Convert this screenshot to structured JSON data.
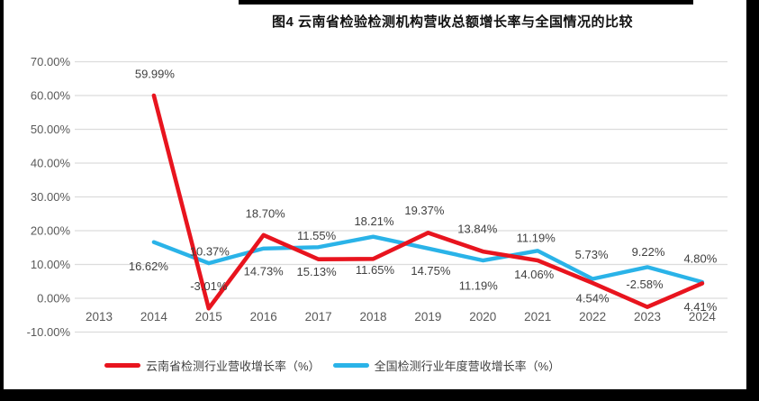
{
  "title": "图4 云南省检验检测机构营收总额增长率与全国情况的比较",
  "chart_data": {
    "type": "line",
    "title": "图4 云南省检验检测机构营收总额增长率与全国情况的比较",
    "categories": [
      "2013",
      "2014",
      "2015",
      "2016",
      "2017",
      "2018",
      "2019",
      "2020",
      "2021",
      "2022",
      "2023",
      "2024"
    ],
    "series": [
      {
        "name": "云南省检测行业营收增长率（%）",
        "color": "#e8141e",
        "values": [
          null,
          59.99,
          -3.01,
          18.7,
          11.55,
          11.65,
          19.37,
          13.84,
          11.19,
          4.54,
          -2.58,
          4.41
        ],
        "labels": [
          null,
          "59.99%",
          "-3.01%",
          "18.70%",
          "11.55%",
          "11.65%",
          "19.37%",
          "13.84%",
          "11.19%",
          "4.54%",
          "-2.58%",
          "4.41%"
        ],
        "label_offsets": [
          null,
          [
            1,
            -24
          ],
          [
            0,
            -25
          ],
          [
            2,
            -24
          ],
          [
            -2,
            -26
          ],
          [
            2,
            12
          ],
          [
            -4,
            -25
          ],
          [
            -6,
            -25
          ],
          [
            -2,
            -25
          ],
          [
            0,
            17
          ],
          [
            -3,
            -25
          ],
          [
            -2,
            26
          ]
        ]
      },
      {
        "name": "全国检测行业年度营收增长率（%）",
        "color": "#2ab3e8",
        "values": [
          null,
          16.62,
          10.37,
          14.73,
          15.13,
          18.21,
          14.75,
          11.19,
          14.06,
          5.73,
          9.22,
          4.8
        ],
        "labels": [
          null,
          "16.62%",
          "10.37%",
          "14.73%",
          "15.13%",
          "18.21%",
          "14.75%",
          "11.19%",
          "14.06%",
          "5.73%",
          "9.22%",
          "4.80%"
        ],
        "label_offsets": [
          null,
          [
            -6,
            27
          ],
          [
            1,
            -13
          ],
          [
            0,
            25
          ],
          [
            -2,
            27
          ],
          [
            1,
            -17
          ],
          [
            3,
            25
          ],
          [
            -5,
            28
          ],
          [
            -4,
            26
          ],
          [
            -1,
            -27
          ],
          [
            1,
            -17
          ],
          [
            -2,
            -26
          ]
        ]
      }
    ],
    "xlabel": "",
    "ylabel": "",
    "ylim": [
      -10,
      70
    ],
    "ytick_step": 10,
    "ytick_labels": [
      "70.00%",
      "60.00%",
      "50.00%",
      "40.00%",
      "30.00%",
      "20.00%",
      "10.00%",
      "0.00%",
      "-10.00%"
    ],
    "grid": true,
    "legend_position": "bottom"
  },
  "style": {
    "grid_color": "#dcdcdc",
    "tick_text_color": "#595959",
    "data_label_color": "#404040",
    "frame_color": "#000000"
  }
}
